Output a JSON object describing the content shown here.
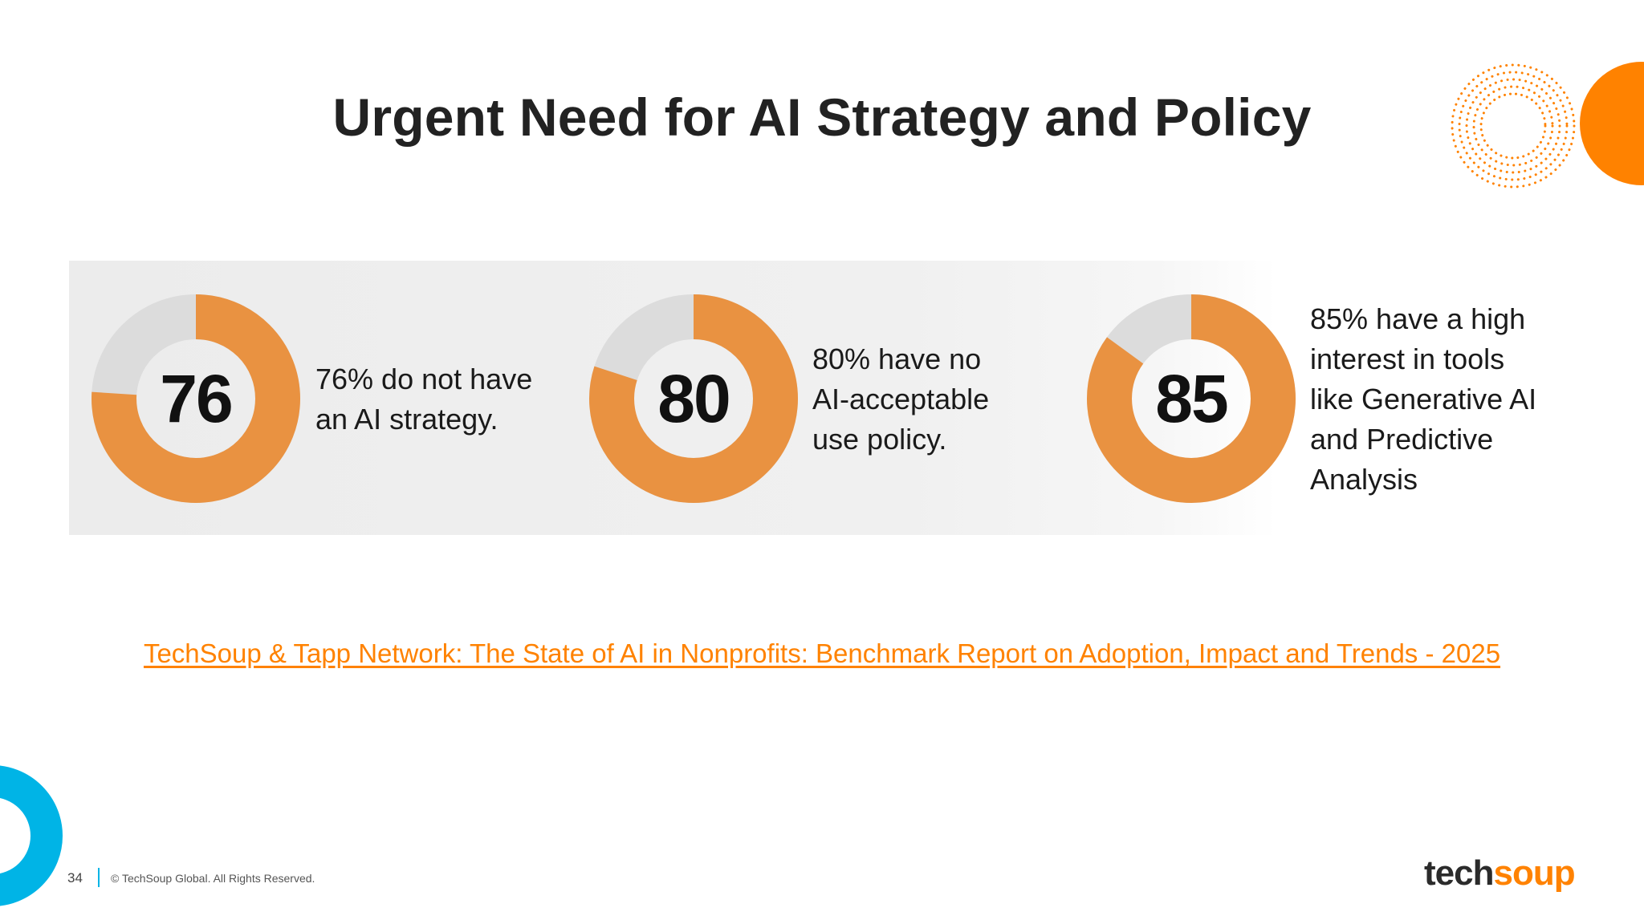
{
  "slide": {
    "title": "Urgent Need for AI Strategy and Policy",
    "page_number": "34",
    "copyright": "© TechSoup Global. All Rights Reserved.",
    "logo": {
      "part1": "tech",
      "part2": "soup"
    },
    "source_link": "TechSoup & Tapp Network: The State of AI in Nonprofits: Benchmark Report on Adoption, Impact and Trends - 2025"
  },
  "colors": {
    "accent_orange": "#FF8200",
    "donut_orange": "#E99241",
    "donut_gray": "#DCDCDC",
    "accent_blue": "#00B4E6"
  },
  "stats": [
    {
      "value": "76",
      "percent": 76,
      "text": "76% do not have an AI strategy."
    },
    {
      "value": "80",
      "percent": 80,
      "text": "80% have no AI-acceptable use policy."
    },
    {
      "value": "85",
      "percent": 85,
      "text": "85% have a high interest in tools like Generative AI and Predictive Analysis"
    }
  ],
  "decorations": {
    "top_right": "dotted-rings-and-orange-circle",
    "bottom_left": "blue-ring"
  }
}
